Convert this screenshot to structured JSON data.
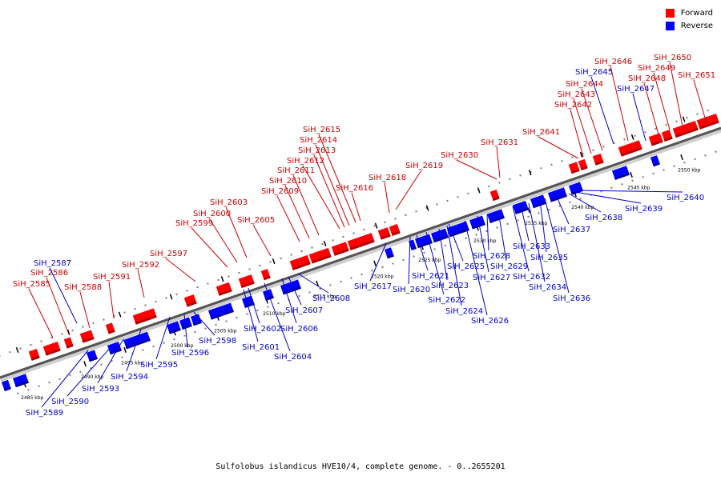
{
  "caption": "Sulfolobus islandicus HVE10/4, complete genome. - 0..2655201",
  "legend": {
    "forward_label": "Forward",
    "forward_color": "#ff0000",
    "reverse_label": "Reverse",
    "reverse_color": "#0000ff"
  },
  "colors": {
    "forward": "#ff0000",
    "forward_dark": "#b40000",
    "reverse": "#0000ff",
    "reverse_dark": "#0000a8",
    "backbone": "#555555",
    "label_forward": "#cc0000",
    "label_reverse": "#0000cc"
  },
  "ruler_labels": [
    "2485 kbp",
    "2490 kbp",
    "2495 kbp",
    "2500 kbp",
    "2505 kbp",
    "2510 kbp",
    "2515 kbp",
    "2520 kbp",
    "2525 kbp",
    "2530 kbp",
    "2535 kbp",
    "2540 kbp",
    "2545 kbp",
    "2550 kbp"
  ],
  "forward_labels": [
    "SiH_2585",
    "SiH_2586",
    "SiH_2588",
    "SiH_2591",
    "SiH_2592",
    "SiH_2597",
    "SiH_2599",
    "SiH_2600",
    "SiH_2603",
    "SiH_2605",
    "SiH_2609",
    "SiH_2610",
    "SiH_2611",
    "SiH_2612",
    "SiH_2613",
    "SiH_2614",
    "SiH_2615",
    "SiH_2616",
    "SiH_2618",
    "SiH_2619",
    "SiH_2630",
    "SiH_2631",
    "SiH_2641",
    "SiH_2642",
    "SiH_2643",
    "SiH_2644",
    "SiH_2646",
    "SiH_2648",
    "SiH_2649",
    "SiH_2650",
    "SiH_2651"
  ],
  "reverse_labels": [
    "SiH_2587",
    "SiH_2589",
    "SiH_2590",
    "SiH_2593",
    "SiH_2594",
    "SiH_2595",
    "SiH_2596",
    "SiH_2598",
    "SiH_2601",
    "SiH_2602",
    "SiH_2604",
    "SiH_2606",
    "SiH_2607",
    "SiH_2608",
    "SiH_2617",
    "SiH_2620",
    "SiH_2621",
    "SiH_2622",
    "SiH_2623",
    "SiH_2624",
    "SiH_2625",
    "SiH_2626",
    "SiH_2627",
    "SiH_2628",
    "SiH_2629",
    "SiH_2632",
    "SiH_2633",
    "SiH_2634",
    "SiH_2635",
    "SiH_2636",
    "SiH_2637",
    "SiH_2638",
    "SiH_2639",
    "SiH_2640",
    "SiH_2645",
    "SiH_2647"
  ]
}
